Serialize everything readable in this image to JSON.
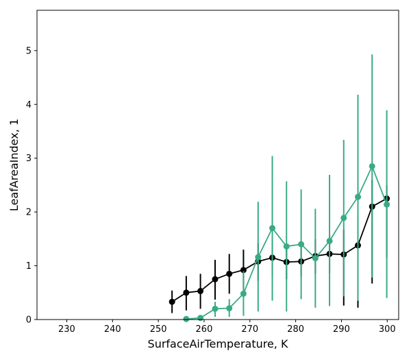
{
  "chart_data": {
    "type": "line",
    "title": "",
    "xlabel": "SurfaceAirTemperature,  K",
    "ylabel": "LeafAreaIndex,  1",
    "xlim": [
      223.5,
      302.5
    ],
    "ylim": [
      0,
      5.75
    ],
    "xticks": [
      230,
      240,
      250,
      260,
      270,
      280,
      290,
      300
    ],
    "yticks": [
      0,
      1,
      2,
      3,
      4,
      5
    ],
    "grid": false,
    "series": [
      {
        "color": "#000000",
        "x": [
          253.0,
          256.1,
          259.2,
          262.4,
          265.5,
          268.6,
          271.8,
          274.9,
          278.0,
          281.2,
          284.3,
          287.4,
          290.5,
          293.6,
          296.7,
          299.9
        ],
        "y": [
          0.33,
          0.5,
          0.53,
          0.75,
          0.85,
          0.92,
          1.08,
          1.15,
          1.07,
          1.08,
          1.18,
          1.22,
          1.21,
          1.38,
          2.1,
          2.25
        ],
        "err_low": [
          0.12,
          0.17,
          0.2,
          0.37,
          0.48,
          0.55,
          0.72,
          0.8,
          0.75,
          0.8,
          0.85,
          0.85,
          0.26,
          0.22,
          0.67,
          1.15
        ],
        "err_high": [
          0.54,
          0.81,
          0.85,
          1.11,
          1.22,
          1.3,
          1.42,
          1.5,
          1.4,
          1.38,
          1.5,
          1.57,
          1.67,
          1.95,
          2.6,
          2.5
        ]
      },
      {
        "color": "#3aaa85",
        "x": [
          256.1,
          259.2,
          262.4,
          265.5,
          268.6,
          271.8,
          274.9,
          278.0,
          281.2,
          284.3,
          287.4,
          290.5,
          293.6,
          296.7,
          299.9
        ],
        "y": [
          0.01,
          0.03,
          0.2,
          0.21,
          0.48,
          1.16,
          1.7,
          1.36,
          1.4,
          1.14,
          1.46,
          1.89,
          2.28,
          2.85,
          2.14
        ],
        "err_low": [
          0.0,
          0.0,
          0.05,
          0.05,
          0.07,
          0.15,
          0.35,
          0.15,
          0.38,
          0.22,
          0.25,
          0.43,
          0.35,
          0.78,
          0.4
        ],
        "err_high": [
          0.05,
          0.06,
          0.33,
          0.38,
          0.9,
          2.19,
          3.04,
          2.57,
          2.42,
          2.06,
          2.69,
          3.34,
          4.18,
          4.93,
          3.89
        ]
      }
    ]
  }
}
